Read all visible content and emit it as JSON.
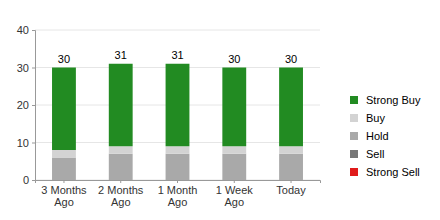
{
  "chart_data": {
    "type": "bar",
    "stacked": true,
    "grid": true,
    "legend": "right",
    "data_labels": false,
    "categories": [
      "3 Months Ago",
      "2 Months Ago",
      "1 Month Ago",
      "1 Week Ago",
      "Today"
    ],
    "series": [
      {
        "name": "Strong Buy",
        "color": "#228b22",
        "values": [
          22,
          22,
          22,
          21,
          21
        ]
      },
      {
        "name": "Buy",
        "color": "#d3d3d3",
        "values": [
          2,
          2,
          2,
          2,
          2
        ]
      },
      {
        "name": "Hold",
        "color": "#a9a9a9",
        "values": [
          6,
          7,
          7,
          7,
          7
        ]
      },
      {
        "name": "Sell",
        "color": "#777777",
        "values": [
          0,
          0,
          0,
          0,
          0
        ]
      },
      {
        "name": "Strong Sell",
        "color": "#e01b1b",
        "values": [
          0,
          0,
          0,
          0,
          0
        ]
      }
    ],
    "totals": [
      30,
      31,
      31,
      30,
      30
    ],
    "ylim": [
      0,
      40
    ],
    "yticks": [
      0,
      10,
      20,
      30,
      40
    ]
  }
}
